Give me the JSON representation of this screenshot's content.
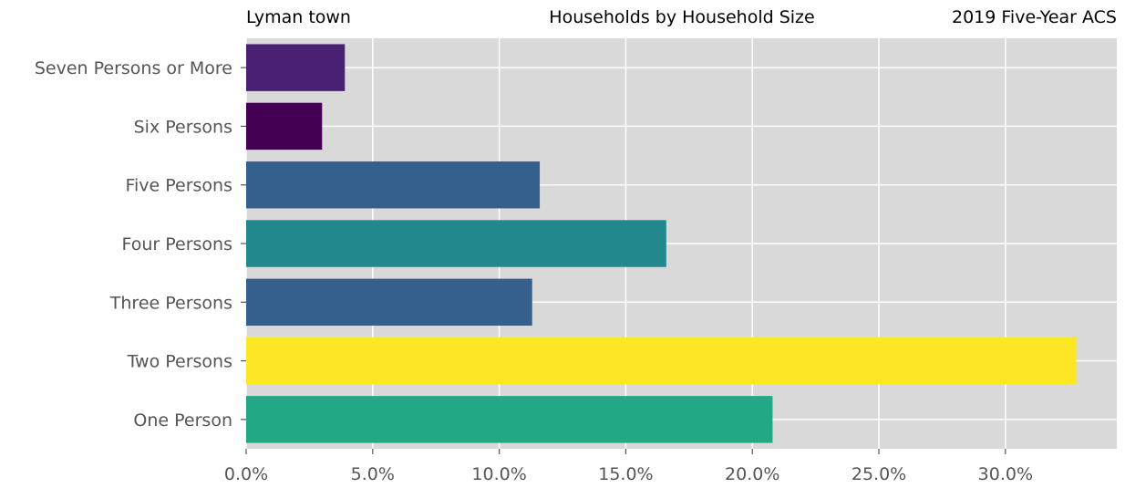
{
  "header": {
    "left_title": "Lyman town",
    "center_title": "Households by Household Size",
    "right_title": "2019 Five-Year ACS"
  },
  "chart_data": {
    "type": "bar",
    "orientation": "horizontal",
    "categories": [
      "One Person",
      "Two Persons",
      "Three Persons",
      "Four Persons",
      "Five Persons",
      "Six Persons",
      "Seven Persons or More"
    ],
    "values": [
      20.8,
      32.8,
      11.3,
      16.6,
      11.6,
      3.0,
      3.9
    ],
    "colors": [
      "#22a884",
      "#fde725",
      "#355f8d",
      "#23888e",
      "#355f8d",
      "#440154",
      "#482173"
    ],
    "value_unit": "%",
    "xlim": [
      0,
      34.4
    ],
    "xticks": [
      0,
      5,
      10,
      15,
      20,
      25,
      30
    ],
    "xtick_labels": [
      "0.0%",
      "5.0%",
      "10.0%",
      "15.0%",
      "20.0%",
      "25.0%",
      "30.0%"
    ],
    "grid": true,
    "background": "#d9d9d9",
    "grid_color": "#ffffff",
    "xlabel": "",
    "ylabel": ""
  }
}
